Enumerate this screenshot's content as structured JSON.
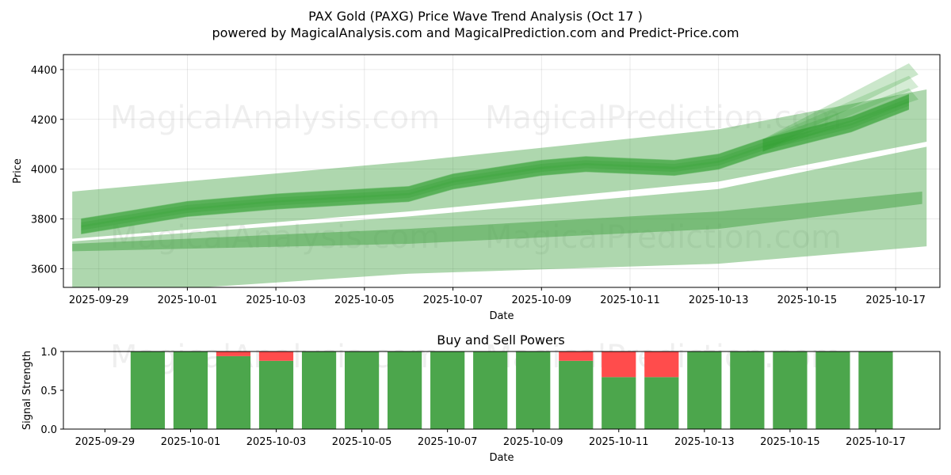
{
  "chart_data": [
    {
      "type": "area",
      "title": "PAX Gold (PAXG) Price Wave Trend Analysis (Oct 17 )",
      "subtitle": "powered by MagicalAnalysis.com and MagicalPrediction.com and Predict-Price.com",
      "xlabel": "Date",
      "ylabel": "Price",
      "xlim": [
        "2025-09-28.2",
        "2025-10-18.0"
      ],
      "ylim": [
        3525,
        4460
      ],
      "grid": true,
      "x_ticks": [
        "2025-09-29",
        "2025-10-01",
        "2025-10-03",
        "2025-10-05",
        "2025-10-07",
        "2025-10-09",
        "2025-10-11",
        "2025-10-13",
        "2025-10-15",
        "2025-10-17"
      ],
      "y_ticks": [
        3600,
        3800,
        4000,
        4200,
        4400
      ],
      "price_band": {
        "dates": [
          "2025-09-28.6",
          "2025-10-01",
          "2025-10-03",
          "2025-10-06",
          "2025-10-07",
          "2025-10-09",
          "2025-10-10",
          "2025-10-12",
          "2025-10-13",
          "2025-10-14",
          "2025-10-16",
          "2025-10-17.3"
        ],
        "center": [
          3770,
          3840,
          3870,
          3900,
          3950,
          4005,
          4020,
          4005,
          4030,
          4090,
          4180,
          4270
        ],
        "half_width": 30
      },
      "wide_bands": [
        {
          "dates": [
            "2025-09-28.4",
            "2025-10-06",
            "2025-10-13",
            "2025-10-17.7"
          ],
          "upper": [
            3910,
            4030,
            4160,
            4320
          ],
          "lower": [
            3720,
            3830,
            3950,
            4110
          ]
        },
        {
          "dates": [
            "2025-09-28.4",
            "2025-10-06",
            "2025-10-13",
            "2025-10-17.7"
          ],
          "upper": [
            3710,
            3810,
            3920,
            4090
          ],
          "lower": [
            3490,
            3580,
            3620,
            3690
          ]
        },
        {
          "dates": [
            "2025-09-28.4",
            "2025-10-06",
            "2025-10-13",
            "2025-10-17.6"
          ],
          "upper": [
            3700,
            3760,
            3830,
            3910
          ],
          "lower": [
            3670,
            3700,
            3760,
            3860
          ]
        }
      ],
      "watermarks": [
        "MagicalAnalysis.com",
        "MagicalPrediction.com"
      ]
    },
    {
      "type": "bar",
      "title": "Buy and Sell Powers",
      "xlabel": "Date",
      "ylabel": "Signal Strength",
      "ylim": [
        0,
        1
      ],
      "y_ticks": [
        "0.0",
        "0.5",
        "1.0"
      ],
      "x_ticks": [
        "2025-09-29",
        "2025-10-01",
        "2025-10-03",
        "2025-10-05",
        "2025-10-07",
        "2025-10-09",
        "2025-10-11",
        "2025-10-13",
        "2025-10-15",
        "2025-10-17"
      ],
      "categories": [
        "2025-09-30",
        "2025-10-01",
        "2025-10-02",
        "2025-10-03",
        "2025-10-04",
        "2025-10-05",
        "2025-10-06",
        "2025-10-07",
        "2025-10-08",
        "2025-10-09",
        "2025-10-10",
        "2025-10-11",
        "2025-10-12",
        "2025-10-13",
        "2025-10-14",
        "2025-10-15",
        "2025-10-16",
        "2025-10-17"
      ],
      "series": [
        {
          "name": "Buy",
          "color": "#4ca64c",
          "values": [
            1.0,
            1.0,
            0.94,
            0.88,
            1.0,
            1.0,
            1.0,
            1.0,
            1.0,
            1.0,
            0.88,
            0.67,
            0.67,
            1.0,
            1.0,
            1.0,
            1.0,
            1.0
          ]
        },
        {
          "name": "Sell",
          "color": "#ff4c4c",
          "values": [
            0.0,
            0.0,
            0.06,
            0.12,
            0.0,
            0.0,
            0.0,
            0.0,
            0.0,
            0.0,
            0.12,
            0.33,
            0.33,
            0.0,
            0.0,
            0.0,
            0.0,
            0.0
          ]
        }
      ],
      "watermarks": [
        "MagicalAnalysis.com",
        "MagicalPrediction.com"
      ]
    }
  ],
  "colors": {
    "green": "#2e9e2e",
    "band": "#4ca64c",
    "red": "#ff4c4c"
  }
}
